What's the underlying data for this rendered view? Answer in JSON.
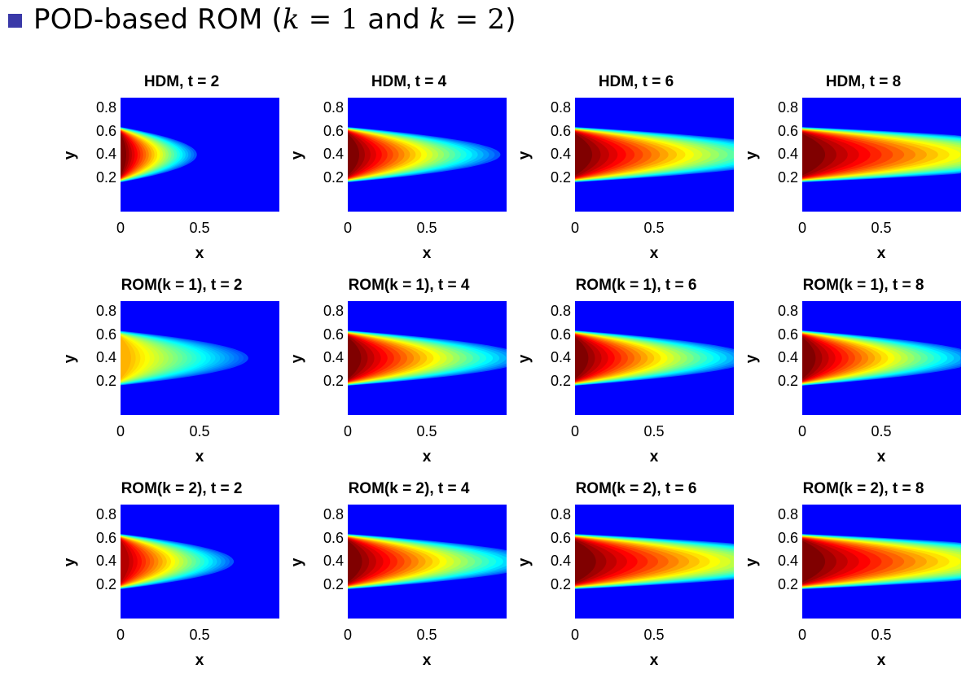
{
  "heading": {
    "prefix": "POD-based ROM (",
    "k1": "k",
    "eq1": " = 1",
    "and": " and ",
    "k2": "k",
    "eq2": " = 2",
    "suffix": ")"
  },
  "bullet_color": "#3a39a8",
  "axes": {
    "xlabel": "x",
    "ylabel": "y",
    "yticks": [
      "0.8",
      "0.6",
      "0.4",
      "0.2"
    ],
    "xticks": [
      "0",
      "0.5"
    ],
    "xlim": [
      0,
      1
    ],
    "ylim": [
      0,
      1
    ]
  },
  "colormap": "jet",
  "panels": [
    [
      {
        "title": "HDM, t = 2",
        "peak": 1.0,
        "reach": 0.6
      },
      {
        "title": "HDM, t = 4",
        "peak": 1.0,
        "reach": 1.2
      },
      {
        "title": "HDM, t = 6",
        "peak": 1.0,
        "reach": 1.8
      },
      {
        "title": "HDM, t = 8",
        "peak": 1.0,
        "reach": 2.4
      }
    ],
    [
      {
        "title": "ROM(k = 1), t = 2",
        "peak": 0.7,
        "reach": 1.1
      },
      {
        "title": "ROM(k = 1), t = 4",
        "peak": 1.0,
        "reach": 1.4
      },
      {
        "title": "ROM(k = 1), t = 6",
        "peak": 1.0,
        "reach": 1.4
      },
      {
        "title": "ROM(k = 1), t = 8",
        "peak": 1.0,
        "reach": 1.4
      }
    ],
    [
      {
        "title": "ROM(k = 2), t = 2",
        "peak": 0.95,
        "reach": 0.9
      },
      {
        "title": "ROM(k = 2), t = 4",
        "peak": 1.0,
        "reach": 1.5
      },
      {
        "title": "ROM(k = 2), t = 6",
        "peak": 1.0,
        "reach": 2.2
      },
      {
        "title": "ROM(k = 2), t = 8",
        "peak": 1.0,
        "reach": 2.4
      }
    ]
  ]
}
